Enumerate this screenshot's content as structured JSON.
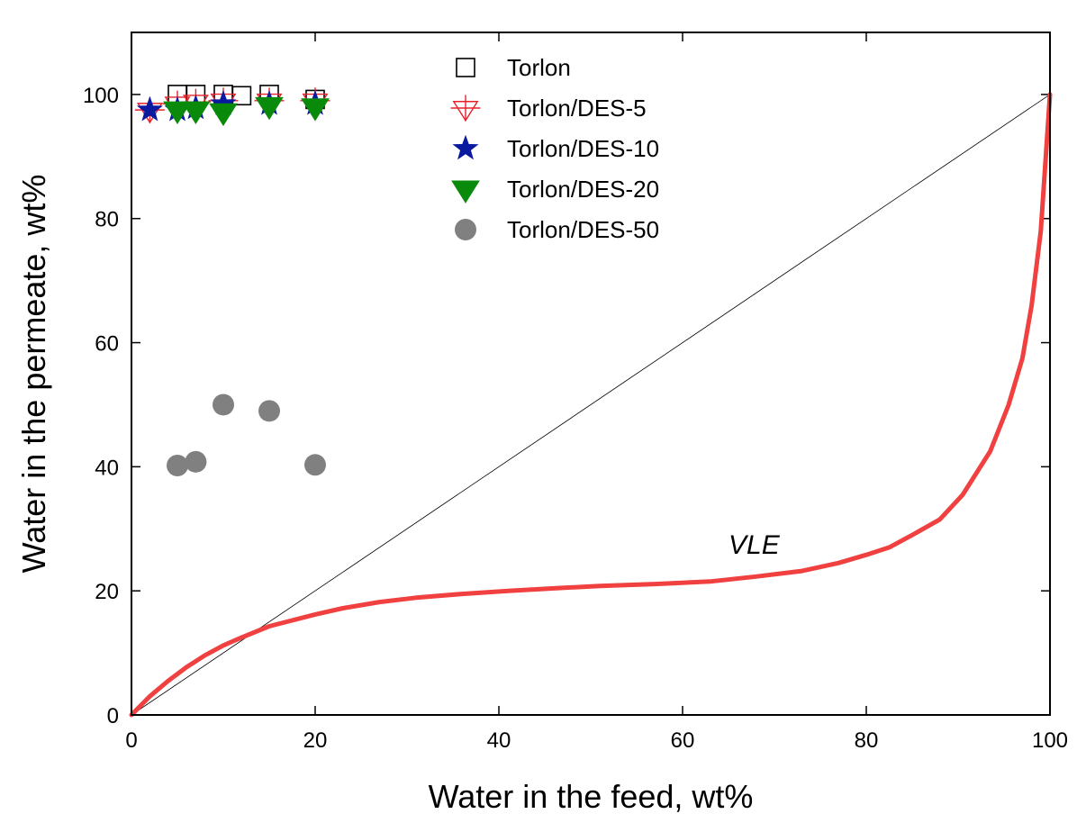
{
  "chart_data": {
    "type": "scatter",
    "title": "",
    "xlabel": "Water in the feed, wt%",
    "ylabel": "Water in the permeate, wt%",
    "xlim": [
      0,
      100
    ],
    "ylim": [
      0,
      110
    ],
    "xticks": [
      0,
      20,
      40,
      60,
      80,
      100
    ],
    "yticks": [
      0,
      20,
      40,
      60,
      80,
      100
    ],
    "xtick_labels": [
      "0",
      "20",
      "40",
      "60",
      "80",
      "100"
    ],
    "ytick_labels": [
      "0",
      "20",
      "40",
      "60",
      "80",
      "100"
    ],
    "grid": false,
    "legend_position": "top-center",
    "series": [
      {
        "name": "Torlon",
        "marker": "open-square",
        "color": "#000000",
        "x": [
          5,
          7,
          10,
          12,
          15,
          20
        ],
        "y": [
          100,
          100,
          100,
          99.8,
          100,
          99.2
        ]
      },
      {
        "name": "Torlon/DES-5",
        "marker": "open-crossed-down-triangle",
        "color": "#e8202a",
        "x": [
          2,
          5,
          7,
          10,
          15,
          20
        ],
        "y": [
          97.5,
          98.5,
          98.8,
          99,
          99,
          99
        ]
      },
      {
        "name": "Torlon/DES-10",
        "marker": "star",
        "color": "#0a1aa0",
        "x": [
          2,
          5,
          7,
          10,
          15,
          20
        ],
        "y": [
          97.5,
          97.5,
          97.8,
          98.5,
          98.5,
          98.5
        ]
      },
      {
        "name": "Torlon/DES-20",
        "marker": "filled-down-triangle",
        "color": "#0a8a0a",
        "x": [
          5,
          7,
          10,
          15,
          20
        ],
        "y": [
          97.5,
          97.5,
          97.2,
          98.2,
          98
        ]
      },
      {
        "name": "Torlon/DES-50",
        "marker": "filled-circle",
        "color": "#808080",
        "x": [
          5,
          7,
          10,
          15,
          20
        ],
        "y": [
          40.2,
          40.8,
          50,
          49,
          40.3
        ]
      }
    ],
    "lines": [
      {
        "name": "diagonal",
        "color": "#000000",
        "x": [
          0,
          100
        ],
        "y": [
          0,
          100
        ]
      },
      {
        "name": "VLE",
        "color": "#f04040",
        "x": [
          0,
          2,
          4,
          6,
          8,
          10,
          12,
          15,
          20,
          23,
          27,
          31,
          36,
          41,
          46,
          51,
          57,
          63,
          68,
          73,
          77,
          80,
          82.5,
          85,
          88,
          90.5,
          93.5,
          95.5,
          97,
          98,
          99,
          100
        ],
        "y": [
          0,
          3,
          5.5,
          7.7,
          9.6,
          11.2,
          12.5,
          14.3,
          16.2,
          17.2,
          18.2,
          18.9,
          19.5,
          20,
          20.4,
          20.8,
          21.1,
          21.5,
          22.3,
          23.2,
          24.5,
          25.8,
          27,
          29,
          31.5,
          35.5,
          42.5,
          50,
          57.5,
          66,
          78,
          100
        ]
      }
    ],
    "annotations": [
      {
        "text": "VLE",
        "x": 65,
        "y": 26
      }
    ]
  }
}
